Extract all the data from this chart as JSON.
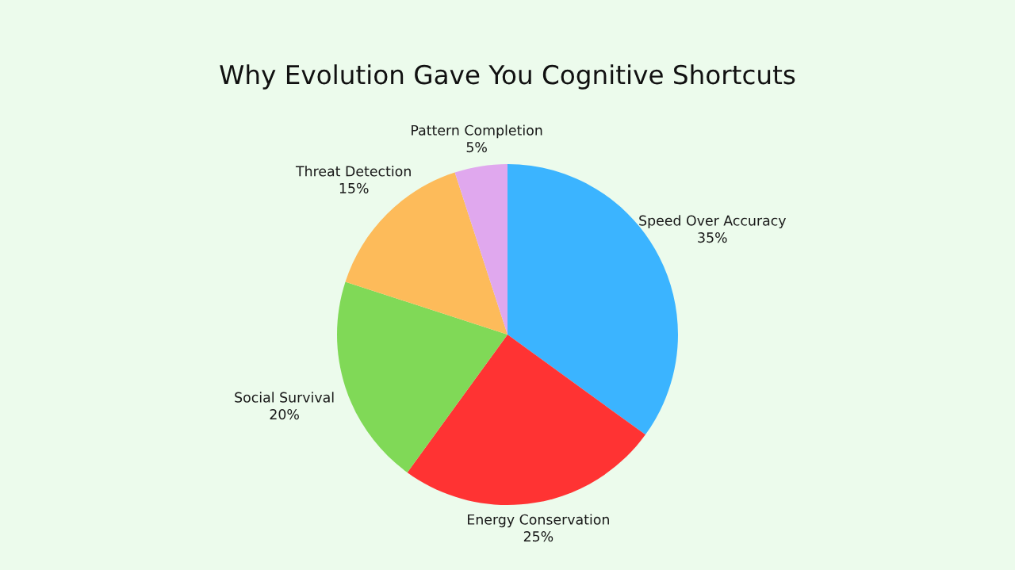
{
  "chart_data": {
    "type": "pie",
    "title": "Why Evolution Gave You Cognitive Shortcuts",
    "categories": [
      "Speed Over Accuracy",
      "Energy Conservation",
      "Social Survival",
      "Threat Detection",
      "Pattern Completion"
    ],
    "values": [
      35,
      25,
      20,
      15,
      5
    ],
    "value_labels": [
      "35%",
      "25%",
      "20%",
      "15%",
      "5%"
    ],
    "colors": [
      "#3bb4ff",
      "#ff3333",
      "#80d957",
      "#fdbb5a",
      "#e0a8ee"
    ]
  }
}
